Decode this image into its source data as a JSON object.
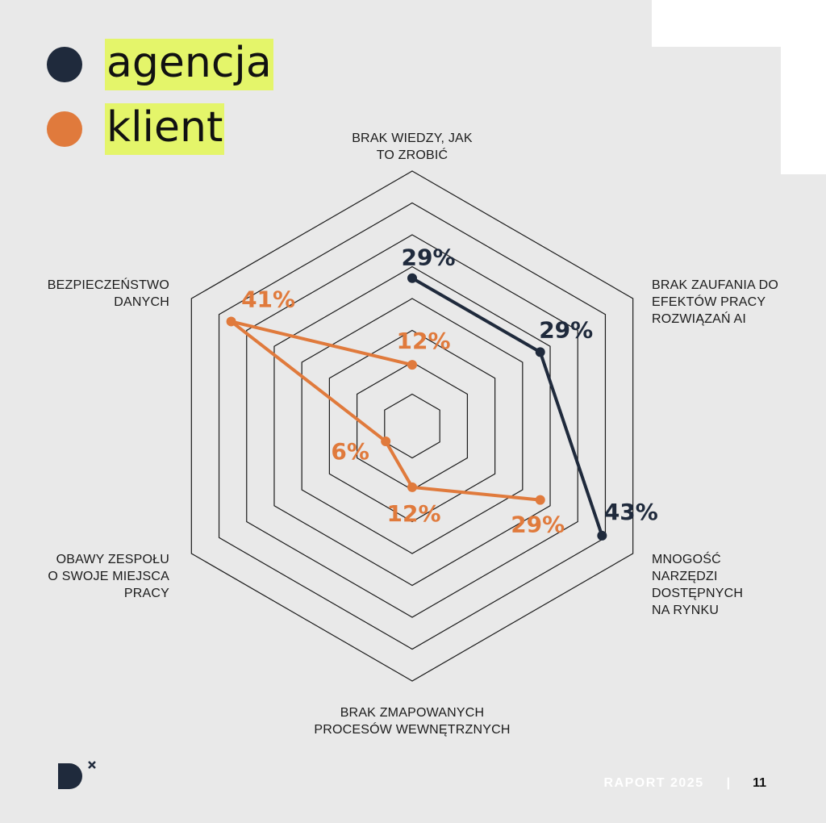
{
  "legend": [
    {
      "label": "agencja",
      "color": "#1f2a3c"
    },
    {
      "label": "klient",
      "color": "#e07a3c"
    }
  ],
  "chart_data": {
    "type": "radar",
    "axes": [
      [
        "BRAK WIEDZY, JAK",
        "TO ZROBIĆ"
      ],
      [
        "BRAK ZAUFANIA DO",
        "EFEKTÓW PRACY",
        "ROZWIĄZAŃ AI"
      ],
      [
        "MNOGOŚĆ",
        "NARZĘDZI",
        "DOSTĘPNYCH",
        "NA RYNKU"
      ],
      [
        "BRAK ZMAPOWANYCH",
        "PROCESÓW WEWNĘTRZNYCH"
      ],
      [
        "OBAWY ZESPOŁU",
        "O SWOJE MIEJSCA",
        "PRACY"
      ],
      [
        "BEZPIECZEŃSTWO",
        "DANYCH"
      ]
    ],
    "grid_levels": 8,
    "series": [
      {
        "name": "agencja",
        "color": "#1f2a3c",
        "values": [
          29,
          29,
          43
        ],
        "labels": [
          "29%",
          "29%",
          "43%"
        ]
      },
      {
        "name": "klient",
        "color": "#e07a3c",
        "values": [
          12,
          41,
          6,
          12,
          29
        ],
        "axis_index": [
          0,
          5,
          4,
          3,
          2
        ],
        "labels": [
          "12%",
          "41%",
          "6%",
          "12%",
          "29%"
        ]
      }
    ]
  },
  "footer": {
    "report": "RAPORT 2025",
    "separator": "|",
    "page": "11"
  },
  "logo": {
    "name": "dx-logo",
    "color": "#1f2a3c"
  }
}
